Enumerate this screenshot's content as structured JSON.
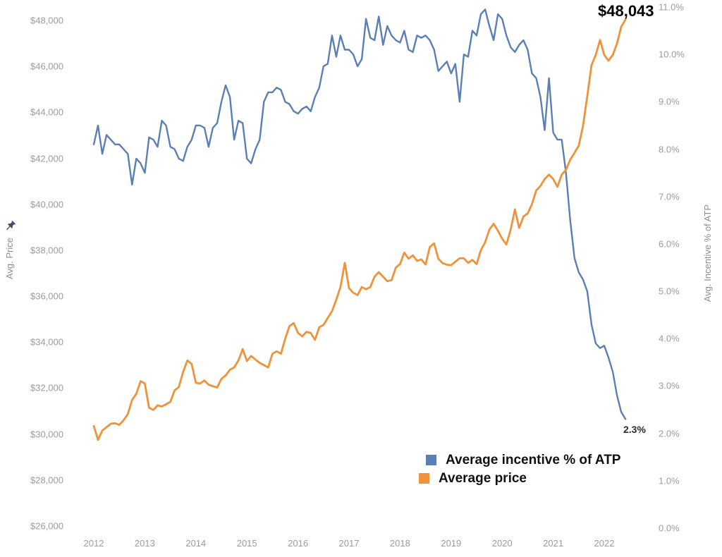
{
  "annotations": {
    "price_end": "$48,043",
    "incentive_end": "2.3%"
  },
  "legend": {
    "items": [
      {
        "label": "Average incentive % of ATP",
        "color": "#5b7fb4"
      },
      {
        "label": "Average price",
        "color": "#f0923b"
      }
    ]
  },
  "chart_data": {
    "type": "line",
    "title": "",
    "x_axis": {
      "tick_labels": [
        "2012",
        "2013",
        "2014",
        "2015",
        "2016",
        "2017",
        "2018",
        "2019",
        "2020",
        "2021",
        "2022"
      ],
      "points_per_year": 12,
      "x_start_year": 2012
    },
    "left_axis": {
      "title": "Avg. Price",
      "min": 26000,
      "max": 48000,
      "tick_labels": [
        "$48,000",
        "$46,000",
        "$44,000",
        "$42,000",
        "$40,000",
        "$38,000",
        "$36,000",
        "$34,000",
        "$32,000",
        "$30,000",
        "$28,000",
        "$26,000"
      ]
    },
    "right_axis": {
      "title": "Avg. Incentive % of ATP",
      "min": 0,
      "max": 11,
      "tick_labels": [
        "11.0%",
        "10.0%",
        "9.0%",
        "8.0%",
        "7.0%",
        "6.0%",
        "5.0%",
        "4.0%",
        "3.0%",
        "2.0%",
        "1.0%",
        "0.0%"
      ]
    },
    "series": [
      {
        "name": "Average incentive % of ATP",
        "axis": "right",
        "color": "#5b7fb4",
        "stroke_width": 2.4,
        "values": [
          8.1,
          8.5,
          7.9,
          8.3,
          8.2,
          8.1,
          8.1,
          8.0,
          7.9,
          7.25,
          7.8,
          7.7,
          7.5,
          8.25,
          8.2,
          8.05,
          8.6,
          8.5,
          8.05,
          8.0,
          7.8,
          7.75,
          8.05,
          8.2,
          8.5,
          8.5,
          8.45,
          8.05,
          8.45,
          8.55,
          9.0,
          9.35,
          9.1,
          8.2,
          8.6,
          8.55,
          7.8,
          7.7,
          8.0,
          8.2,
          9.0,
          9.2,
          9.2,
          9.3,
          9.25,
          9.0,
          8.95,
          8.8,
          8.75,
          8.85,
          8.9,
          8.8,
          9.1,
          9.3,
          9.75,
          9.8,
          10.4,
          9.95,
          10.4,
          10.1,
          10.1,
          10.0,
          9.75,
          9.9,
          10.75,
          10.35,
          10.3,
          10.8,
          10.2,
          10.6,
          10.4,
          10.3,
          10.25,
          10.5,
          10.1,
          10.05,
          10.4,
          10.35,
          10.4,
          10.3,
          10.1,
          9.65,
          9.75,
          9.85,
          9.6,
          9.8,
          9.0,
          10.0,
          9.95,
          10.5,
          10.4,
          10.85,
          10.95,
          10.6,
          10.3,
          10.85,
          10.75,
          10.4,
          10.15,
          10.05,
          10.2,
          10.3,
          10.1,
          9.6,
          9.5,
          9.1,
          8.4,
          9.5,
          8.35,
          8.2,
          8.2,
          7.5,
          6.5,
          5.7,
          5.4,
          5.25,
          5.0,
          4.3,
          3.9,
          3.8,
          3.85,
          3.6,
          3.3,
          2.8,
          2.45,
          2.3
        ]
      },
      {
        "name": "Average price",
        "axis": "left",
        "color": "#f0923b",
        "stroke_width": 2.8,
        "values": [
          30350,
          29750,
          30150,
          30300,
          30450,
          30470,
          30400,
          30600,
          30870,
          31480,
          31750,
          32300,
          32200,
          31150,
          31050,
          31250,
          31200,
          31300,
          31400,
          31900,
          32050,
          32700,
          33200,
          33050,
          32230,
          32200,
          32330,
          32150,
          32080,
          32030,
          32400,
          32550,
          32800,
          32900,
          33200,
          33700,
          33180,
          33400,
          33240,
          33100,
          33000,
          32900,
          33500,
          33600,
          33500,
          34150,
          34700,
          34830,
          34400,
          34250,
          34450,
          34400,
          34100,
          34650,
          34750,
          35050,
          35350,
          35850,
          36400,
          37450,
          36350,
          36150,
          36050,
          36400,
          36300,
          36400,
          36850,
          37050,
          36850,
          36650,
          36700,
          37250,
          37400,
          37900,
          37630,
          37780,
          37540,
          37600,
          37380,
          38140,
          38300,
          37630,
          37440,
          37370,
          37350,
          37500,
          37650,
          37650,
          37450,
          37580,
          37400,
          38000,
          38350,
          38900,
          39150,
          38850,
          38500,
          38250,
          38900,
          39780,
          38970,
          39470,
          39600,
          40000,
          40600,
          40800,
          41100,
          41290,
          41100,
          40760,
          41290,
          41500,
          41940,
          42240,
          42550,
          43400,
          44700,
          46050,
          46500,
          47150,
          46500,
          46250,
          46500,
          47000,
          47730,
          48043
        ]
      }
    ]
  }
}
